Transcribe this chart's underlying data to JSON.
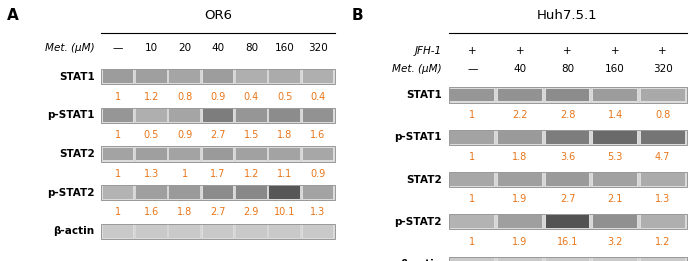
{
  "panel_A": {
    "label": "A",
    "title": "OR6",
    "header_row": [
      "Met. (μM)",
      "—",
      "10",
      "20",
      "40",
      "80",
      "160",
      "320"
    ],
    "rows": [
      {
        "name": "STAT1",
        "values": [
          "1",
          "1.2",
          "0.8",
          "0.9",
          "0.4",
          "0.5",
          "0.4"
        ]
      },
      {
        "name": "p-STAT1",
        "values": [
          "1",
          "0.5",
          "0.9",
          "2.7",
          "1.5",
          "1.8",
          "1.6"
        ]
      },
      {
        "name": "STAT2",
        "values": [
          "1",
          "1.3",
          "1",
          "1.7",
          "1.2",
          "1.1",
          "0.9"
        ]
      },
      {
        "name": "p-STAT2",
        "values": [
          "1",
          "1.6",
          "1.8",
          "2.7",
          "2.9",
          "10.1",
          "1.3"
        ]
      },
      {
        "name": "β-actin",
        "values": null
      }
    ],
    "n_lanes": 7,
    "has_jfh": false,
    "band_gray": {
      "STAT1": [
        0.52,
        0.5,
        0.47,
        0.51,
        0.42,
        0.44,
        0.42
      ],
      "p-STAT1": [
        0.55,
        0.42,
        0.47,
        0.68,
        0.55,
        0.6,
        0.57
      ],
      "STAT2": [
        0.48,
        0.5,
        0.48,
        0.53,
        0.49,
        0.48,
        0.46
      ],
      "p-STAT2": [
        0.4,
        0.5,
        0.53,
        0.6,
        0.62,
        0.88,
        0.48
      ],
      "b-actin": [
        0.28,
        0.28,
        0.28,
        0.28,
        0.28,
        0.28,
        0.28
      ]
    }
  },
  "panel_B": {
    "label": "B",
    "title": "Huh7.5.1",
    "header_rows": [
      [
        "JFH-1",
        "+",
        "+",
        "+",
        "+",
        "+"
      ],
      [
        "Met. (μM)",
        "—",
        "40",
        "80",
        "160",
        "320"
      ]
    ],
    "rows": [
      {
        "name": "STAT1",
        "values": [
          "1",
          "2.2",
          "2.8",
          "1.4",
          "0.8"
        ]
      },
      {
        "name": "p-STAT1",
        "values": [
          "1",
          "1.8",
          "3.6",
          "5.3",
          "4.7"
        ]
      },
      {
        "name": "STAT2",
        "values": [
          "1",
          "1.9",
          "2.7",
          "2.1",
          "1.3"
        ]
      },
      {
        "name": "p-STAT2",
        "values": [
          "1",
          "1.9",
          "16.1",
          "3.2",
          "1.2"
        ]
      },
      {
        "name": "β-actin",
        "values": null
      }
    ],
    "n_lanes": 5,
    "has_jfh": true,
    "band_gray": {
      "STAT1": [
        0.55,
        0.57,
        0.6,
        0.52,
        0.45
      ],
      "p-STAT1": [
        0.48,
        0.53,
        0.68,
        0.78,
        0.72
      ],
      "STAT2": [
        0.46,
        0.5,
        0.53,
        0.49,
        0.44
      ],
      "p-STAT2": [
        0.4,
        0.5,
        0.9,
        0.58,
        0.42
      ],
      "b-actin": [
        0.28,
        0.28,
        0.28,
        0.28,
        0.28
      ]
    }
  },
  "value_color": "#E8761A",
  "value_fontsize": 7.0,
  "label_fontsize": 7.5,
  "header_fontsize": 7.5,
  "title_fontsize": 9.5,
  "panel_label_fontsize": 11
}
